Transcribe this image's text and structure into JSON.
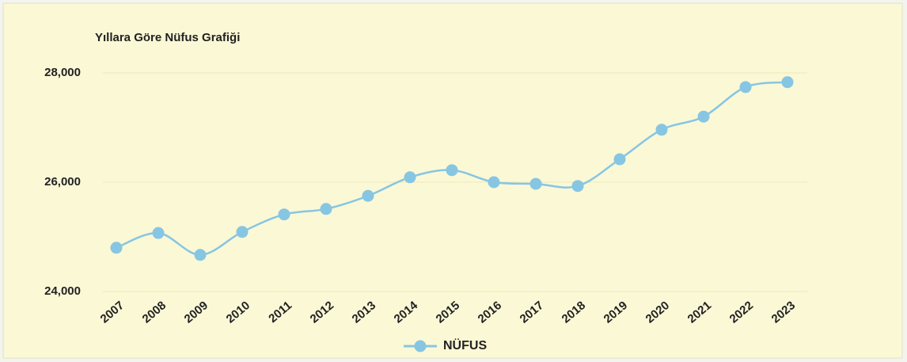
{
  "chart_data": {
    "type": "line",
    "title": "Yıllara Göre Nüfus Grafiği",
    "categories": [
      "2007",
      "2008",
      "2009",
      "2010",
      "2011",
      "2012",
      "2013",
      "2014",
      "2015",
      "2016",
      "2017",
      "2018",
      "2019",
      "2020",
      "2021",
      "2022",
      "2023"
    ],
    "series": [
      {
        "name": "NÜFUS",
        "color": "#86c6e2",
        "values": [
          24800,
          25070,
          24670,
          25090,
          25410,
          25510,
          25750,
          26090,
          26220,
          26000,
          25970,
          25930,
          26420,
          26960,
          27200,
          27740,
          27830
        ]
      }
    ],
    "ylim": [
      24000,
      28000
    ],
    "yticks": [
      {
        "value": 24000,
        "label": "24,000"
      },
      {
        "value": 26000,
        "label": "26,000"
      },
      {
        "value": 28000,
        "label": "28,000"
      }
    ],
    "grid": true,
    "legend": "bottom"
  }
}
